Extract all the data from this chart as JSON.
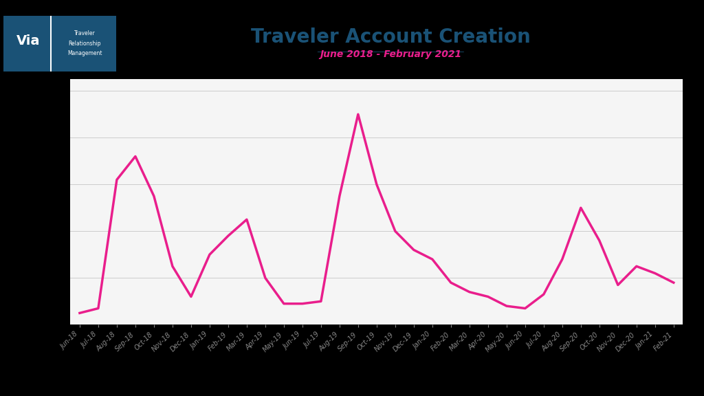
{
  "title": "Traveler Account Creation",
  "subtitle": "June 2018 - February 2021",
  "title_color": "#1a5276",
  "subtitle_color": "#e91e8c",
  "line_color": "#e91e8c",
  "background_color": "#ffffff",
  "chart_bg_color": "#f5f5f5",
  "labels": [
    "Jun-18",
    "Jul-18",
    "Aug-18",
    "Sep-18",
    "Oct-18",
    "Nov-18",
    "Dec-18",
    "Jan-19",
    "Feb-19",
    "Mar-19",
    "Apr-19",
    "May-19",
    "Jun-19",
    "Jul-19",
    "Aug-19",
    "Sep-19",
    "Oct-19",
    "Nov-19",
    "Dec-19",
    "Jan-20",
    "Feb-20",
    "Mar-20",
    "Apr-20",
    "May-20",
    "Jun-20",
    "Jul-20",
    "Aug-20",
    "Sep-20",
    "Oct-20",
    "Nov-20",
    "Dec-20",
    "Jan-21",
    "Feb-21"
  ],
  "values": [
    5,
    7,
    62,
    72,
    55,
    25,
    12,
    30,
    38,
    45,
    20,
    9,
    9,
    10,
    55,
    90,
    60,
    40,
    32,
    28,
    18,
    14,
    12,
    8,
    7,
    13,
    28,
    50,
    36,
    17,
    25,
    22,
    18
  ],
  "line_width": 2.5,
  "grid_color": "#cccccc",
  "tick_color": "#888888",
  "logo_bg_color": "#1a5276",
  "logo_text_color": "#ffffff"
}
